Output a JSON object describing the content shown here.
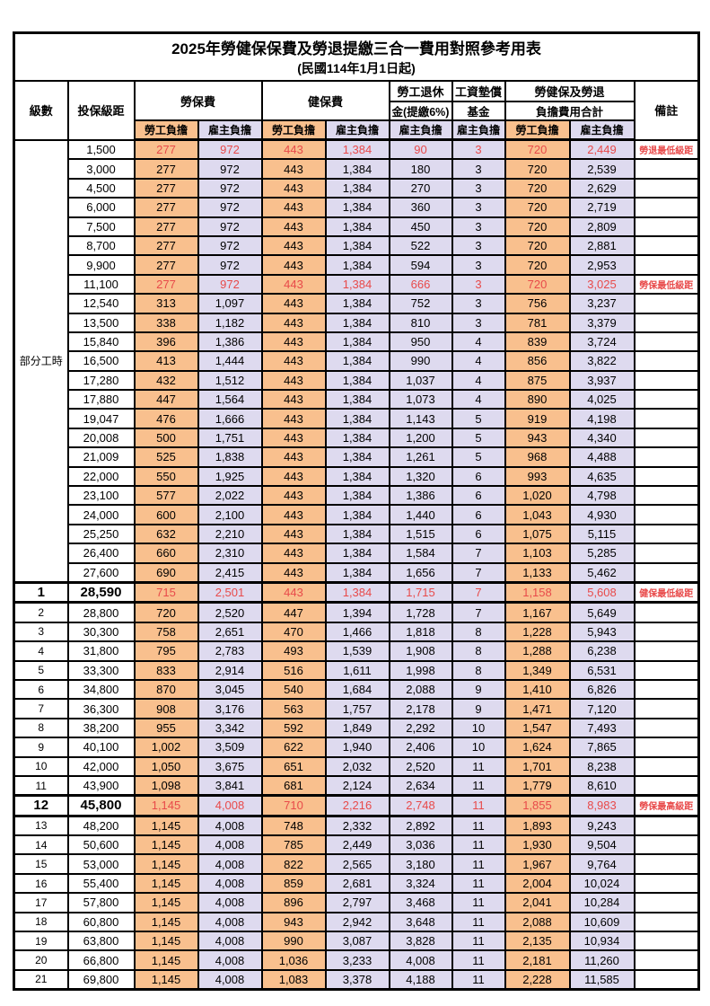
{
  "title": "2025年勞健保保費及勞退提繳三合一費用對照參考用表",
  "subtitle": "(民國114年1月1日起)",
  "colors": {
    "employee_bg": "#F9C08E",
    "employer_bg": "#DEDAEF",
    "highlight_text": "#E84A4A",
    "border": "#000000"
  },
  "header": {
    "level": "級數",
    "bracket": "投保級距",
    "labor_ins": "勞保費",
    "health_ins": "健保費",
    "pension_line1": "勞工退休",
    "pension_line2": "金(提繳6%)",
    "wage_fund_line1": "工資墊償",
    "wage_fund_line2": "基金",
    "total_line1": "勞健保及勞退",
    "total_line2": "負擔費用合計",
    "remark": "備註",
    "employee": "勞工負擔",
    "employer": "雇主負擔"
  },
  "rows": [
    {
      "level": "部分工時",
      "rowspan": 23,
      "bracket": "1,500",
      "values": [
        "277",
        "972",
        "443",
        "1,384",
        "90",
        "3",
        "720",
        "2,449"
      ],
      "remark": "勞退最低級距",
      "red": true,
      "key": false
    },
    {
      "bracket": "3,000",
      "values": [
        "277",
        "972",
        "443",
        "1,384",
        "180",
        "3",
        "720",
        "2,539"
      ],
      "remark": "",
      "red": false,
      "key": false
    },
    {
      "bracket": "4,500",
      "values": [
        "277",
        "972",
        "443",
        "1,384",
        "270",
        "3",
        "720",
        "2,629"
      ],
      "remark": "",
      "red": false,
      "key": false
    },
    {
      "bracket": "6,000",
      "values": [
        "277",
        "972",
        "443",
        "1,384",
        "360",
        "3",
        "720",
        "2,719"
      ],
      "remark": "",
      "red": false,
      "key": false
    },
    {
      "bracket": "7,500",
      "values": [
        "277",
        "972",
        "443",
        "1,384",
        "450",
        "3",
        "720",
        "2,809"
      ],
      "remark": "",
      "red": false,
      "key": false
    },
    {
      "bracket": "8,700",
      "values": [
        "277",
        "972",
        "443",
        "1,384",
        "522",
        "3",
        "720",
        "2,881"
      ],
      "remark": "",
      "red": false,
      "key": false
    },
    {
      "bracket": "9,900",
      "values": [
        "277",
        "972",
        "443",
        "1,384",
        "594",
        "3",
        "720",
        "2,953"
      ],
      "remark": "",
      "red": false,
      "key": false
    },
    {
      "bracket": "11,100",
      "values": [
        "277",
        "972",
        "443",
        "1,384",
        "666",
        "3",
        "720",
        "3,025"
      ],
      "remark": "勞保最低級距",
      "red": true,
      "key": false
    },
    {
      "bracket": "12,540",
      "values": [
        "313",
        "1,097",
        "443",
        "1,384",
        "752",
        "3",
        "756",
        "3,237"
      ],
      "remark": "",
      "red": false,
      "key": false
    },
    {
      "bracket": "13,500",
      "values": [
        "338",
        "1,182",
        "443",
        "1,384",
        "810",
        "3",
        "781",
        "3,379"
      ],
      "remark": "",
      "red": false,
      "key": false
    },
    {
      "bracket": "15,840",
      "values": [
        "396",
        "1,386",
        "443",
        "1,384",
        "950",
        "4",
        "839",
        "3,724"
      ],
      "remark": "",
      "red": false,
      "key": false
    },
    {
      "bracket": "16,500",
      "values": [
        "413",
        "1,444",
        "443",
        "1,384",
        "990",
        "4",
        "856",
        "3,822"
      ],
      "remark": "",
      "red": false,
      "key": false
    },
    {
      "bracket": "17,280",
      "values": [
        "432",
        "1,512",
        "443",
        "1,384",
        "1,037",
        "4",
        "875",
        "3,937"
      ],
      "remark": "",
      "red": false,
      "key": false
    },
    {
      "bracket": "17,880",
      "values": [
        "447",
        "1,564",
        "443",
        "1,384",
        "1,073",
        "4",
        "890",
        "4,025"
      ],
      "remark": "",
      "red": false,
      "key": false
    },
    {
      "bracket": "19,047",
      "values": [
        "476",
        "1,666",
        "443",
        "1,384",
        "1,143",
        "5",
        "919",
        "4,198"
      ],
      "remark": "",
      "red": false,
      "key": false
    },
    {
      "bracket": "20,008",
      "values": [
        "500",
        "1,751",
        "443",
        "1,384",
        "1,200",
        "5",
        "943",
        "4,340"
      ],
      "remark": "",
      "red": false,
      "key": false
    },
    {
      "bracket": "21,009",
      "values": [
        "525",
        "1,838",
        "443",
        "1,384",
        "1,261",
        "5",
        "968",
        "4,488"
      ],
      "remark": "",
      "red": false,
      "key": false
    },
    {
      "bracket": "22,000",
      "values": [
        "550",
        "1,925",
        "443",
        "1,384",
        "1,320",
        "6",
        "993",
        "4,635"
      ],
      "remark": "",
      "red": false,
      "key": false
    },
    {
      "bracket": "23,100",
      "values": [
        "577",
        "2,022",
        "443",
        "1,384",
        "1,386",
        "6",
        "1,020",
        "4,798"
      ],
      "remark": "",
      "red": false,
      "key": false
    },
    {
      "bracket": "24,000",
      "values": [
        "600",
        "2,100",
        "443",
        "1,384",
        "1,440",
        "6",
        "1,043",
        "4,930"
      ],
      "remark": "",
      "red": false,
      "key": false
    },
    {
      "bracket": "25,250",
      "values": [
        "632",
        "2,210",
        "443",
        "1,384",
        "1,515",
        "6",
        "1,075",
        "5,115"
      ],
      "remark": "",
      "red": false,
      "key": false
    },
    {
      "bracket": "26,400",
      "values": [
        "660",
        "2,310",
        "443",
        "1,384",
        "1,584",
        "7",
        "1,103",
        "5,285"
      ],
      "remark": "",
      "red": false,
      "key": false
    },
    {
      "bracket": "27,600",
      "values": [
        "690",
        "2,415",
        "443",
        "1,384",
        "1,656",
        "7",
        "1,133",
        "5,462"
      ],
      "remark": "",
      "red": false,
      "key": false
    },
    {
      "level": "1",
      "bracket": "28,590",
      "values": [
        "715",
        "2,501",
        "443",
        "1,384",
        "1,715",
        "7",
        "1,158",
        "5,608"
      ],
      "remark": "健保最低級距",
      "red": true,
      "key": true
    },
    {
      "level": "2",
      "bracket": "28,800",
      "values": [
        "720",
        "2,520",
        "447",
        "1,394",
        "1,728",
        "7",
        "1,167",
        "5,649"
      ],
      "remark": "",
      "red": false,
      "key": false
    },
    {
      "level": "3",
      "bracket": "30,300",
      "values": [
        "758",
        "2,651",
        "470",
        "1,466",
        "1,818",
        "8",
        "1,228",
        "5,943"
      ],
      "remark": "",
      "red": false,
      "key": false
    },
    {
      "level": "4",
      "bracket": "31,800",
      "values": [
        "795",
        "2,783",
        "493",
        "1,539",
        "1,908",
        "8",
        "1,288",
        "6,238"
      ],
      "remark": "",
      "red": false,
      "key": false
    },
    {
      "level": "5",
      "bracket": "33,300",
      "values": [
        "833",
        "2,914",
        "516",
        "1,611",
        "1,998",
        "8",
        "1,349",
        "6,531"
      ],
      "remark": "",
      "red": false,
      "key": false
    },
    {
      "level": "6",
      "bracket": "34,800",
      "values": [
        "870",
        "3,045",
        "540",
        "1,684",
        "2,088",
        "9",
        "1,410",
        "6,826"
      ],
      "remark": "",
      "red": false,
      "key": false
    },
    {
      "level": "7",
      "bracket": "36,300",
      "values": [
        "908",
        "3,176",
        "563",
        "1,757",
        "2,178",
        "9",
        "1,471",
        "7,120"
      ],
      "remark": "",
      "red": false,
      "key": false
    },
    {
      "level": "8",
      "bracket": "38,200",
      "values": [
        "955",
        "3,342",
        "592",
        "1,849",
        "2,292",
        "10",
        "1,547",
        "7,493"
      ],
      "remark": "",
      "red": false,
      "key": false
    },
    {
      "level": "9",
      "bracket": "40,100",
      "values": [
        "1,002",
        "3,509",
        "622",
        "1,940",
        "2,406",
        "10",
        "1,624",
        "7,865"
      ],
      "remark": "",
      "red": false,
      "key": false
    },
    {
      "level": "10",
      "bracket": "42,000",
      "values": [
        "1,050",
        "3,675",
        "651",
        "2,032",
        "2,520",
        "11",
        "1,701",
        "8,238"
      ],
      "remark": "",
      "red": false,
      "key": false
    },
    {
      "level": "11",
      "bracket": "43,900",
      "values": [
        "1,098",
        "3,841",
        "681",
        "2,124",
        "2,634",
        "11",
        "1,779",
        "8,610"
      ],
      "remark": "",
      "red": false,
      "key": false
    },
    {
      "level": "12",
      "bracket": "45,800",
      "values": [
        "1,145",
        "4,008",
        "710",
        "2,216",
        "2,748",
        "11",
        "1,855",
        "8,983"
      ],
      "remark": "勞保最高級距",
      "red": true,
      "key": true
    },
    {
      "level": "13",
      "bracket": "48,200",
      "values": [
        "1,145",
        "4,008",
        "748",
        "2,332",
        "2,892",
        "11",
        "1,893",
        "9,243"
      ],
      "remark": "",
      "red": false,
      "key": false
    },
    {
      "level": "14",
      "bracket": "50,600",
      "values": [
        "1,145",
        "4,008",
        "785",
        "2,449",
        "3,036",
        "11",
        "1,930",
        "9,504"
      ],
      "remark": "",
      "red": false,
      "key": false
    },
    {
      "level": "15",
      "bracket": "53,000",
      "values": [
        "1,145",
        "4,008",
        "822",
        "2,565",
        "3,180",
        "11",
        "1,967",
        "9,764"
      ],
      "remark": "",
      "red": false,
      "key": false
    },
    {
      "level": "16",
      "bracket": "55,400",
      "values": [
        "1,145",
        "4,008",
        "859",
        "2,681",
        "3,324",
        "11",
        "2,004",
        "10,024"
      ],
      "remark": "",
      "red": false,
      "key": false
    },
    {
      "level": "17",
      "bracket": "57,800",
      "values": [
        "1,145",
        "4,008",
        "896",
        "2,797",
        "3,468",
        "11",
        "2,041",
        "10,284"
      ],
      "remark": "",
      "red": false,
      "key": false
    },
    {
      "level": "18",
      "bracket": "60,800",
      "values": [
        "1,145",
        "4,008",
        "943",
        "2,942",
        "3,648",
        "11",
        "2,088",
        "10,609"
      ],
      "remark": "",
      "red": false,
      "key": false
    },
    {
      "level": "19",
      "bracket": "63,800",
      "values": [
        "1,145",
        "4,008",
        "990",
        "3,087",
        "3,828",
        "11",
        "2,135",
        "10,934"
      ],
      "remark": "",
      "red": false,
      "key": false
    },
    {
      "level": "20",
      "bracket": "66,800",
      "values": [
        "1,145",
        "4,008",
        "1,036",
        "3,233",
        "4,008",
        "11",
        "2,181",
        "11,260"
      ],
      "remark": "",
      "red": false,
      "key": false
    },
    {
      "level": "21",
      "bracket": "69,800",
      "values": [
        "1,145",
        "4,008",
        "1,083",
        "3,378",
        "4,188",
        "11",
        "2,228",
        "11,585"
      ],
      "remark": "",
      "red": false,
      "key": false
    }
  ]
}
